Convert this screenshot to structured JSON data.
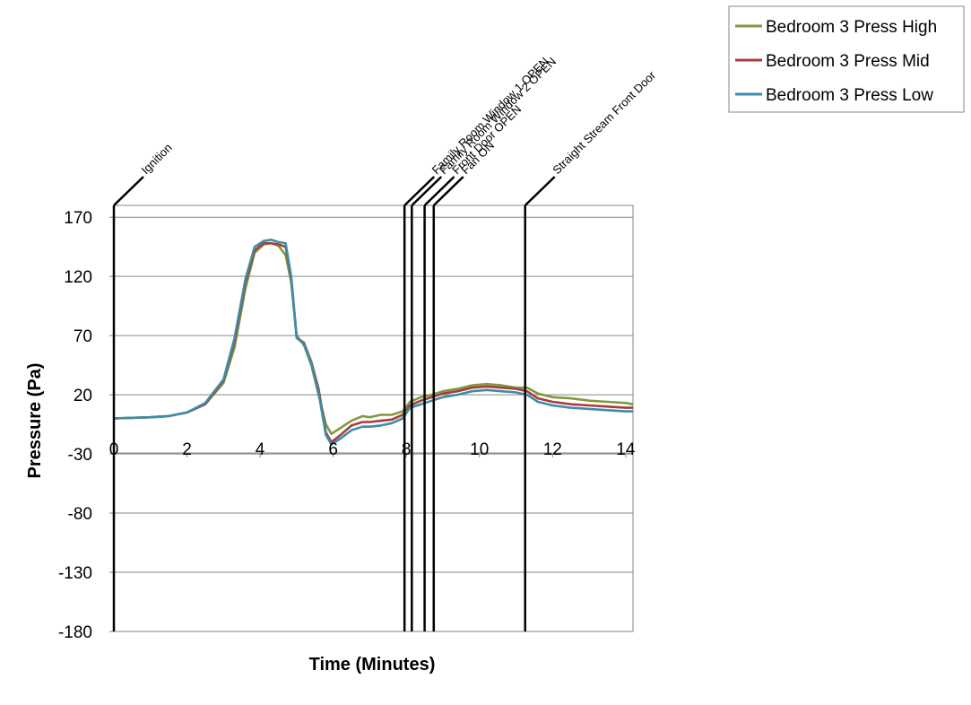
{
  "chart_data": {
    "type": "line",
    "title": "",
    "xlabel": "Time (Minutes)",
    "ylabel": "Pressure (Pa)",
    "xlim": [
      0,
      14.2
    ],
    "ylim": [
      -180,
      180
    ],
    "x_ticks": [
      0,
      2,
      4,
      6,
      8,
      10,
      12,
      14
    ],
    "y_ticks": [
      170,
      120,
      70,
      20,
      -30,
      -80,
      -130,
      -180
    ],
    "grid": "horizontal",
    "legend_position": "top-right",
    "events": [
      {
        "label": "Ignition",
        "x": 0
      },
      {
        "label": "Family Room Window 1 OPEN",
        "x": 7.95
      },
      {
        "label": "Family Room Window 2 OPEN",
        "x": 8.15
      },
      {
        "label": "Front Door OPEN",
        "x": 8.5
      },
      {
        "label": "Fan ON",
        "x": 8.75
      },
      {
        "label": "Straight Stream Front Door",
        "x": 11.25
      }
    ],
    "series": [
      {
        "name": "Bedroom 3 Press High",
        "color": "#7f9a3c",
        "points": [
          [
            0,
            0
          ],
          [
            1,
            1
          ],
          [
            1.5,
            2
          ],
          [
            2,
            5
          ],
          [
            2.5,
            12
          ],
          [
            3,
            30
          ],
          [
            3.3,
            60
          ],
          [
            3.6,
            110
          ],
          [
            3.85,
            140
          ],
          [
            4.1,
            147
          ],
          [
            4.3,
            148
          ],
          [
            4.5,
            146
          ],
          [
            4.7,
            138
          ],
          [
            4.85,
            115
          ],
          [
            5,
            70
          ],
          [
            5.2,
            62
          ],
          [
            5.4,
            45
          ],
          [
            5.6,
            20
          ],
          [
            5.8,
            -5
          ],
          [
            5.95,
            -13
          ],
          [
            6.2,
            -8
          ],
          [
            6.5,
            -2
          ],
          [
            6.8,
            2
          ],
          [
            7,
            1
          ],
          [
            7.3,
            3
          ],
          [
            7.6,
            3
          ],
          [
            7.9,
            6
          ],
          [
            8.1,
            14
          ],
          [
            8.4,
            18
          ],
          [
            8.7,
            20
          ],
          [
            9,
            23
          ],
          [
            9.4,
            25
          ],
          [
            9.8,
            28
          ],
          [
            10.2,
            29
          ],
          [
            10.6,
            28
          ],
          [
            11,
            26
          ],
          [
            11.3,
            26
          ],
          [
            11.6,
            21
          ],
          [
            12,
            18
          ],
          [
            12.5,
            17
          ],
          [
            13,
            15
          ],
          [
            13.5,
            14
          ],
          [
            14,
            13
          ],
          [
            14.2,
            12
          ]
        ]
      },
      {
        "name": "Bedroom 3 Press Mid",
        "color": "#a83c3c",
        "points": [
          [
            0,
            0
          ],
          [
            1,
            1
          ],
          [
            1.5,
            2
          ],
          [
            2,
            5
          ],
          [
            2.5,
            12
          ],
          [
            3,
            32
          ],
          [
            3.3,
            65
          ],
          [
            3.6,
            115
          ],
          [
            3.85,
            142
          ],
          [
            4.1,
            148
          ],
          [
            4.3,
            148
          ],
          [
            4.5,
            147
          ],
          [
            4.7,
            145
          ],
          [
            4.85,
            118
          ],
          [
            5,
            68
          ],
          [
            5.2,
            64
          ],
          [
            5.4,
            48
          ],
          [
            5.6,
            25
          ],
          [
            5.8,
            -12
          ],
          [
            5.95,
            -20
          ],
          [
            6.2,
            -14
          ],
          [
            6.5,
            -6
          ],
          [
            6.8,
            -3
          ],
          [
            7,
            -3
          ],
          [
            7.3,
            -2
          ],
          [
            7.6,
            -1
          ],
          [
            7.9,
            3
          ],
          [
            8.1,
            11
          ],
          [
            8.4,
            15
          ],
          [
            8.7,
            18
          ],
          [
            9,
            21
          ],
          [
            9.4,
            23
          ],
          [
            9.8,
            26
          ],
          [
            10.2,
            27
          ],
          [
            10.6,
            26
          ],
          [
            11,
            25
          ],
          [
            11.3,
            23
          ],
          [
            11.6,
            17
          ],
          [
            12,
            14
          ],
          [
            12.5,
            12
          ],
          [
            13,
            11
          ],
          [
            13.5,
            10
          ],
          [
            14,
            9
          ],
          [
            14.2,
            9
          ]
        ]
      },
      {
        "name": "Bedroom 3 Press Low",
        "color": "#3d8ca8",
        "points": [
          [
            0,
            0
          ],
          [
            1,
            1
          ],
          [
            1.5,
            2
          ],
          [
            2,
            5
          ],
          [
            2.5,
            13
          ],
          [
            3,
            33
          ],
          [
            3.3,
            68
          ],
          [
            3.6,
            118
          ],
          [
            3.85,
            145
          ],
          [
            4.1,
            150
          ],
          [
            4.3,
            151
          ],
          [
            4.5,
            149
          ],
          [
            4.7,
            148
          ],
          [
            4.85,
            120
          ],
          [
            5,
            68
          ],
          [
            5.2,
            63
          ],
          [
            5.4,
            47
          ],
          [
            5.6,
            22
          ],
          [
            5.8,
            -14
          ],
          [
            5.95,
            -22
          ],
          [
            6.2,
            -17
          ],
          [
            6.5,
            -10
          ],
          [
            6.8,
            -7
          ],
          [
            7,
            -7
          ],
          [
            7.3,
            -6
          ],
          [
            7.6,
            -4
          ],
          [
            7.9,
            0
          ],
          [
            8.1,
            9
          ],
          [
            8.4,
            12
          ],
          [
            8.7,
            15
          ],
          [
            9,
            18
          ],
          [
            9.4,
            20
          ],
          [
            9.8,
            23
          ],
          [
            10.2,
            24
          ],
          [
            10.6,
            23
          ],
          [
            11,
            22
          ],
          [
            11.3,
            20
          ],
          [
            11.6,
            14
          ],
          [
            12,
            11
          ],
          [
            12.5,
            9
          ],
          [
            13,
            8
          ],
          [
            13.5,
            7
          ],
          [
            14,
            6
          ],
          [
            14.2,
            6
          ]
        ]
      }
    ]
  }
}
